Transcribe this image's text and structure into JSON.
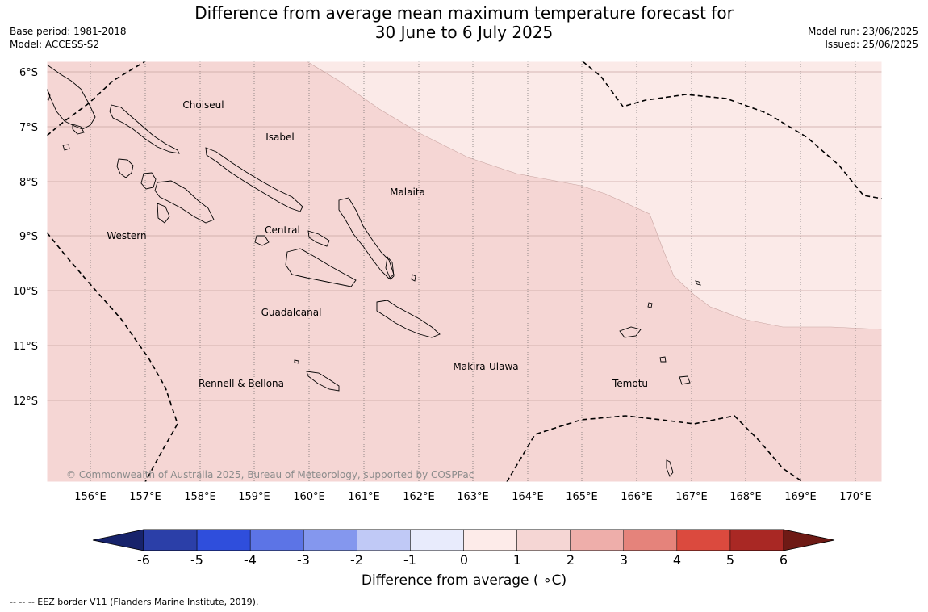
{
  "title": {
    "line1": "Difference from average mean maximum temperature forecast for",
    "line2": "30 June to 6 July 2025"
  },
  "meta_left": {
    "base_period": "Base period: 1981-2018",
    "model": "Model: ACCESS-S2"
  },
  "meta_right": {
    "model_run": "Model run: 23/06/2025",
    "issued": "Issued: 25/06/2025"
  },
  "map": {
    "latitude_labels": [
      "6°S",
      "7°S",
      "8°S",
      "9°S",
      "10°S",
      "11°S",
      "12°S"
    ],
    "longitude_labels": [
      "156°E",
      "157°E",
      "158°E",
      "159°E",
      "160°E",
      "161°E",
      "162°E",
      "163°E",
      "164°E",
      "165°E",
      "166°E",
      "167°E",
      "168°E",
      "169°E",
      "170°E"
    ],
    "region_labels": [
      "Choiseul",
      "Isabel",
      "Malaita",
      "Western",
      "Central",
      "Guadalcanal",
      "Rennell & Bellona",
      "Makira-Ulawa",
      "Temotu"
    ],
    "copyright": "© Commonwealth of Australia 2025, Bureau of Meteorology, supported by COSPPac",
    "fill_colors": {
      "anomaly_1_to_2": "#f5d6d4",
      "anomaly_0_to_1": "#fbeae8"
    }
  },
  "colorbar": {
    "ticks": [
      "-6",
      "-5",
      "-4",
      "-3",
      "-2",
      "-1",
      "0",
      "1",
      "2",
      "3",
      "4",
      "5",
      "6"
    ],
    "under_color": "#17236b",
    "over_color": "#6e1a15",
    "colors": [
      "#2b3fa8",
      "#2f4edc",
      "#5c74e6",
      "#8497ee",
      "#c0c9f6",
      "#e8ebfc",
      "#fdebe9",
      "#f5d6d4",
      "#eeaeaa",
      "#e5837b",
      "#db4a3e",
      "#a92824"
    ],
    "label": "Difference from average ( ∘C)"
  },
  "footnote": "--  --  -- EEZ border V11 (Flanders Marine Institute, 2019)."
}
